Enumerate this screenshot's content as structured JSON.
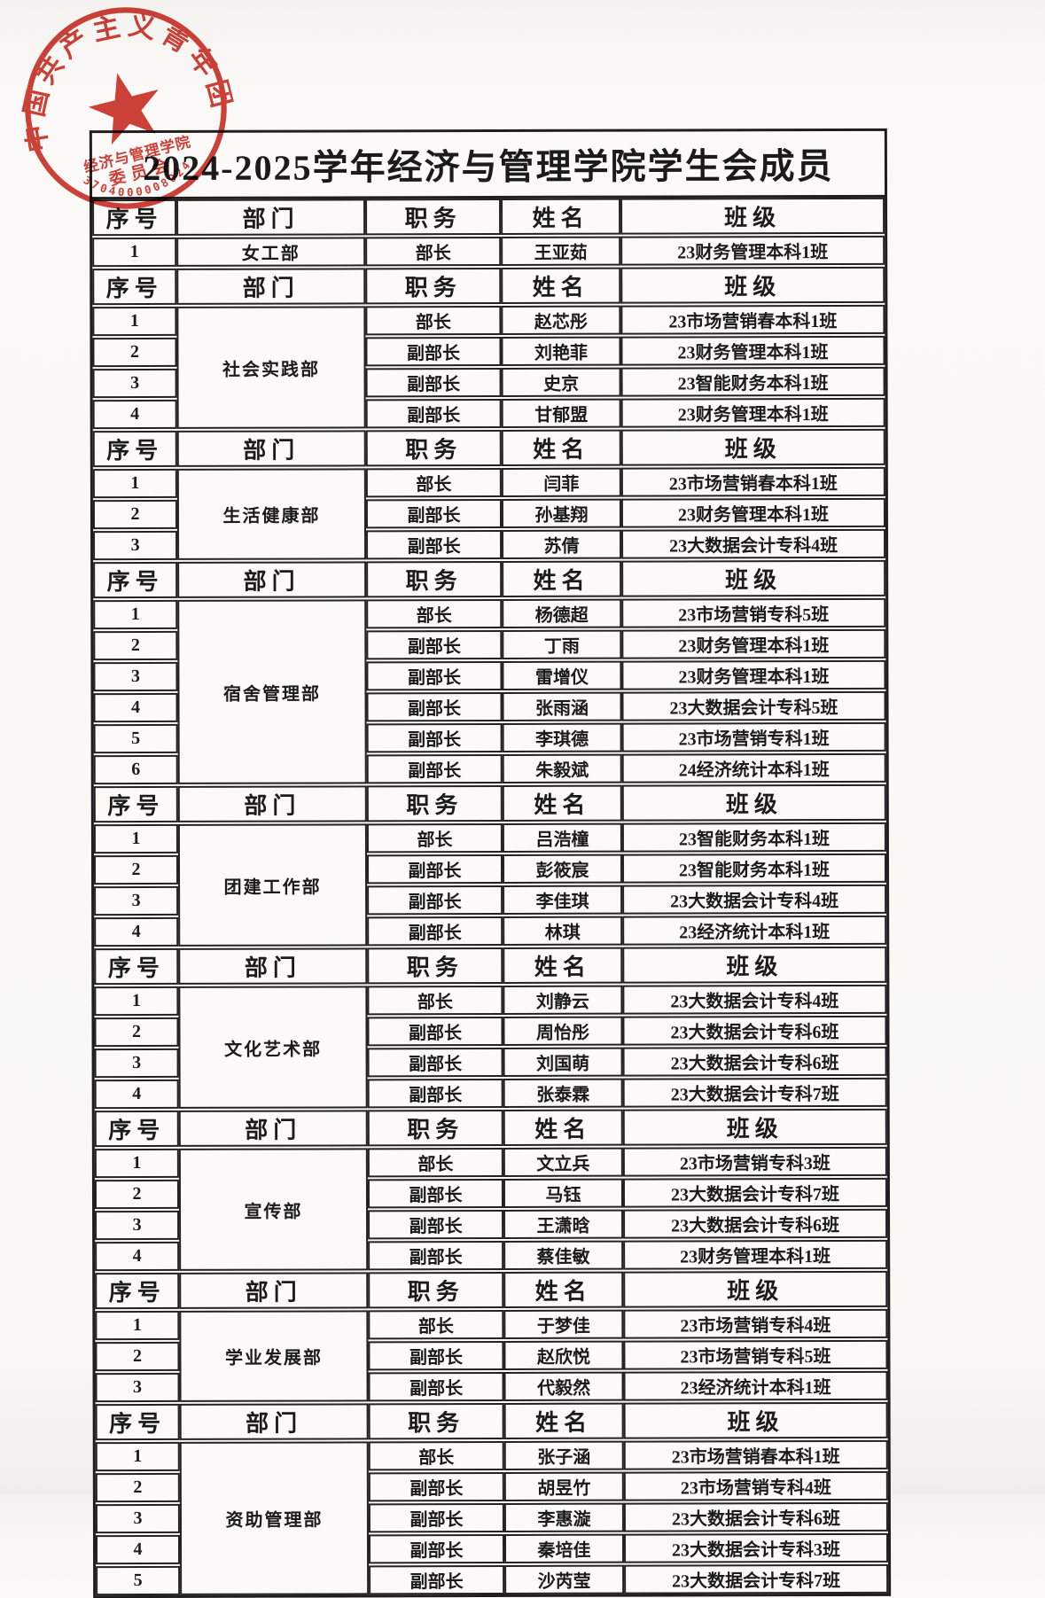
{
  "page": {
    "title": "2024-2025学年经济与管理学院学生会成员"
  },
  "columns": {
    "seq": "序号",
    "dept": "部门",
    "role": "职务",
    "name": "姓名",
    "cls": "班级"
  },
  "stamp": {
    "ring_text": "中国共产主义青年团",
    "org_line": "经济与管理学院",
    "committee_line": "委员会",
    "serial": "3704000008024",
    "color": "#c9271d",
    "star_icon": "red-star"
  },
  "sections": [
    {
      "department": "女工部",
      "rows": [
        {
          "seq": "1",
          "role": "部长",
          "name": "王亚茹",
          "cls": "23财务管理本科1班"
        }
      ]
    },
    {
      "department": "社会实践部",
      "rows": [
        {
          "seq": "1",
          "role": "部长",
          "name": "赵芯彤",
          "cls": "23市场营销春本科1班"
        },
        {
          "seq": "2",
          "role": "副部长",
          "name": "刘艳菲",
          "cls": "23财务管理本科1班"
        },
        {
          "seq": "3",
          "role": "副部长",
          "name": "史京",
          "cls": "23智能财务本科1班"
        },
        {
          "seq": "4",
          "role": "副部长",
          "name": "甘郁盟",
          "cls": "23财务管理本科1班"
        }
      ]
    },
    {
      "department": "生活健康部",
      "rows": [
        {
          "seq": "1",
          "role": "部长",
          "name": "闫菲",
          "cls": "23市场营销春本科1班"
        },
        {
          "seq": "2",
          "role": "副部长",
          "name": "孙基翔",
          "cls": "23财务管理本科1班"
        },
        {
          "seq": "3",
          "role": "副部长",
          "name": "苏倩",
          "cls": "23大数据会计专科4班"
        }
      ]
    },
    {
      "department": "宿舍管理部",
      "rows": [
        {
          "seq": "1",
          "role": "部长",
          "name": "杨德超",
          "cls": "23市场营销专科5班"
        },
        {
          "seq": "2",
          "role": "副部长",
          "name": "丁雨",
          "cls": "23财务管理本科1班"
        },
        {
          "seq": "3",
          "role": "副部长",
          "name": "雷增仪",
          "cls": "23财务管理本科1班"
        },
        {
          "seq": "4",
          "role": "副部长",
          "name": "张雨涵",
          "cls": "23大数据会计专科5班"
        },
        {
          "seq": "5",
          "role": "副部长",
          "name": "李琪德",
          "cls": "23市场营销专科1班"
        },
        {
          "seq": "6",
          "role": "副部长",
          "name": "朱毅斌",
          "cls": "24经济统计本科1班"
        }
      ]
    },
    {
      "department": "团建工作部",
      "rows": [
        {
          "seq": "1",
          "role": "部长",
          "name": "吕浩橦",
          "cls": "23智能财务本科1班"
        },
        {
          "seq": "2",
          "role": "副部长",
          "name": "彭筱宸",
          "cls": "23智能财务本科1班"
        },
        {
          "seq": "3",
          "role": "副部长",
          "name": "李佳琪",
          "cls": "23大数据会计专科4班"
        },
        {
          "seq": "4",
          "role": "副部长",
          "name": "林琪",
          "cls": "23经济统计本科1班"
        }
      ]
    },
    {
      "department": "文化艺术部",
      "rows": [
        {
          "seq": "1",
          "role": "部长",
          "name": "刘静云",
          "cls": "23大数据会计专科4班"
        },
        {
          "seq": "2",
          "role": "副部长",
          "name": "周怡彤",
          "cls": "23大数据会计专科6班"
        },
        {
          "seq": "3",
          "role": "副部长",
          "name": "刘国萌",
          "cls": "23大数据会计专科6班"
        },
        {
          "seq": "4",
          "role": "副部长",
          "name": "张泰霖",
          "cls": "23大数据会计专科7班"
        }
      ]
    },
    {
      "department": "宣传部",
      "rows": [
        {
          "seq": "1",
          "role": "部长",
          "name": "文立兵",
          "cls": "23市场营销专科3班"
        },
        {
          "seq": "2",
          "role": "副部长",
          "name": "马钰",
          "cls": "23大数据会计专科7班"
        },
        {
          "seq": "3",
          "role": "副部长",
          "name": "王潇晗",
          "cls": "23大数据会计专科6班"
        },
        {
          "seq": "4",
          "role": "副部长",
          "name": "蔡佳敏",
          "cls": "23财务管理本科1班"
        }
      ]
    },
    {
      "department": "学业发展部",
      "rows": [
        {
          "seq": "1",
          "role": "部长",
          "name": "于梦佳",
          "cls": "23市场营销专科4班"
        },
        {
          "seq": "2",
          "role": "副部长",
          "name": "赵欣悦",
          "cls": "23市场营销专科5班"
        },
        {
          "seq": "3",
          "role": "副部长",
          "name": "代毅然",
          "cls": "23经济统计本科1班"
        }
      ]
    },
    {
      "department": "资助管理部",
      "rows": [
        {
          "seq": "1",
          "role": "部长",
          "name": "张子涵",
          "cls": "23市场营销春本科1班"
        },
        {
          "seq": "2",
          "role": "副部长",
          "name": "胡昱竹",
          "cls": "23市场营销专科4班"
        },
        {
          "seq": "3",
          "role": "副部长",
          "name": "李惠漩",
          "cls": "23大数据会计专科6班"
        },
        {
          "seq": "4",
          "role": "副部长",
          "name": "秦培佳",
          "cls": "23大数据会计专科3班"
        },
        {
          "seq": "5",
          "role": "副部长",
          "name": "沙芮莹",
          "cls": "23大数据会计专科7班"
        }
      ]
    }
  ]
}
